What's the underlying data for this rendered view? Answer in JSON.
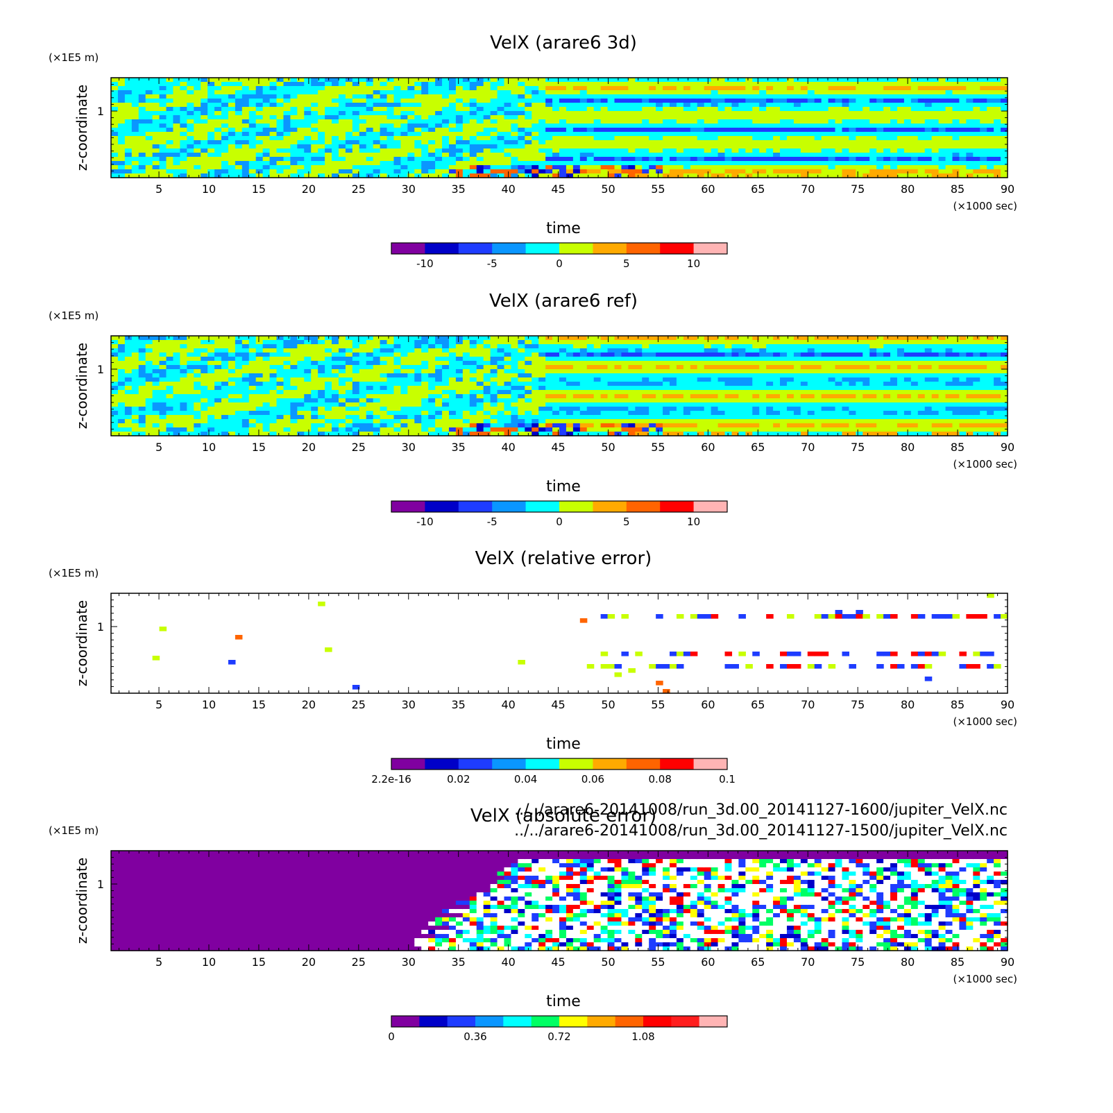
{
  "chart_data": [
    {
      "type": "heatmap",
      "title": "VelX (arare6 3d)",
      "xlabel": "time",
      "ylabel": "z-coordinate",
      "x_unit": "(×1000 sec)",
      "y_unit": "(×1E5 m)",
      "xlim": [
        0.2,
        90
      ],
      "ylim": [
        0,
        1.5
      ],
      "xticks": [
        "5",
        "10",
        "15",
        "20",
        "25",
        "30",
        "35",
        "40",
        "45",
        "50",
        "55",
        "60",
        "65",
        "70",
        "75",
        "80",
        "85",
        "90"
      ],
      "yticks": [
        "1"
      ],
      "colorbar": {
        "colors": [
          "#8000a0",
          "#0000c8",
          "#1e3cff",
          "#0a96ff",
          "#00ffff",
          "#c8ff00",
          "#ffaa00",
          "#ff6400",
          "#ff0000",
          "#ffb4b4"
        ],
        "labels": [
          "-10",
          "-5",
          "0",
          "5",
          "10"
        ]
      }
    },
    {
      "type": "heatmap",
      "title": "VelX (arare6 ref)",
      "xlabel": "time",
      "ylabel": "z-coordinate",
      "x_unit": "(×1000 sec)",
      "y_unit": "(×1E5 m)",
      "xlim": [
        0.2,
        90
      ],
      "ylim": [
        0,
        1.5
      ],
      "xticks": [
        "5",
        "10",
        "15",
        "20",
        "25",
        "30",
        "35",
        "40",
        "45",
        "50",
        "55",
        "60",
        "65",
        "70",
        "75",
        "80",
        "85",
        "90"
      ],
      "yticks": [
        "1"
      ],
      "colorbar": {
        "colors": [
          "#8000a0",
          "#0000c8",
          "#1e3cff",
          "#0a96ff",
          "#00ffff",
          "#c8ff00",
          "#ffaa00",
          "#ff6400",
          "#ff0000",
          "#ffb4b4"
        ],
        "labels": [
          "-10",
          "-5",
          "0",
          "5",
          "10"
        ]
      }
    },
    {
      "type": "heatmap",
      "title": "VelX (relative error)",
      "xlabel": "time",
      "ylabel": "z-coordinate",
      "x_unit": "(×1000 sec)",
      "y_unit": "(×1E5 m)",
      "xlim": [
        0.2,
        90
      ],
      "ylim": [
        0,
        1.5
      ],
      "xticks": [
        "5",
        "10",
        "15",
        "20",
        "25",
        "30",
        "35",
        "40",
        "45",
        "50",
        "55",
        "60",
        "65",
        "70",
        "75",
        "80",
        "85",
        "90"
      ],
      "yticks": [
        "1"
      ],
      "colorbar": {
        "colors": [
          "#8000a0",
          "#0000c8",
          "#1e3cff",
          "#0a96ff",
          "#00ffff",
          "#c8ff00",
          "#ffaa00",
          "#ff6400",
          "#ff0000",
          "#ffb4b4"
        ],
        "labels": [
          "2.2e-16",
          "0.02",
          "0.04",
          "0.06",
          "0.08",
          "0.1"
        ]
      }
    },
    {
      "type": "heatmap",
      "title": "VelX (absolute error)",
      "xlabel": "time",
      "ylabel": "z-coordinate",
      "x_unit": "(×1000 sec)",
      "y_unit": "(×1E5 m)",
      "xlim": [
        0.2,
        90
      ],
      "ylim": [
        0,
        1.5
      ],
      "xticks": [
        "5",
        "10",
        "15",
        "20",
        "25",
        "30",
        "35",
        "40",
        "45",
        "50",
        "55",
        "60",
        "65",
        "70",
        "75",
        "80",
        "85",
        "90"
      ],
      "yticks": [
        "1"
      ],
      "colorbar": {
        "colors": [
          "#8000a0",
          "#0000c8",
          "#1e3cff",
          "#0a96ff",
          "#00ffff",
          "#00ff64",
          "#ffff00",
          "#ffaa00",
          "#ff6400",
          "#ff0000",
          "#ff1e1e",
          "#ffb4b4"
        ],
        "labels": [
          "0",
          "0.36",
          "0.72",
          "1.08"
        ]
      }
    }
  ],
  "footer": {
    "files": [
      "../../arare6-20141008/run_3d.00_20141127-1600/jupiter_VelX.nc",
      "../../arare6-20141008/run_3d.00_20141127-1500/jupiter_VelX.nc"
    ]
  }
}
